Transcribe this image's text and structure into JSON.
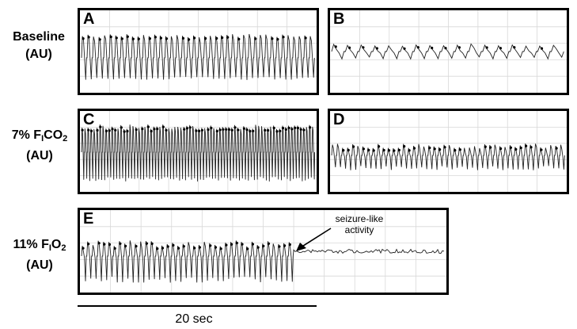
{
  "rows": {
    "baseline": {
      "line1": "Baseline",
      "line2": "(AU)"
    },
    "fico2": {
      "prefix": "7% F",
      "sub": "I",
      "mid": "CO",
      "sub2": "2",
      "line2": "(AU)"
    },
    "fio2": {
      "prefix": "11% F",
      "sub": "I",
      "mid": "O",
      "sub2": "2",
      "line2": "(AU)"
    }
  },
  "panels": {
    "A": {
      "letter": "A"
    },
    "B": {
      "letter": "B"
    },
    "C": {
      "letter": "C"
    },
    "D": {
      "letter": "D"
    },
    "E": {
      "letter": "E"
    }
  },
  "annotation": {
    "line1": "seizure-like",
    "line2": "activity"
  },
  "scale": {
    "label": "20 sec"
  },
  "colors": {
    "trace": "#222222",
    "grid": "#d8d8d8",
    "frame": "#000000"
  }
}
